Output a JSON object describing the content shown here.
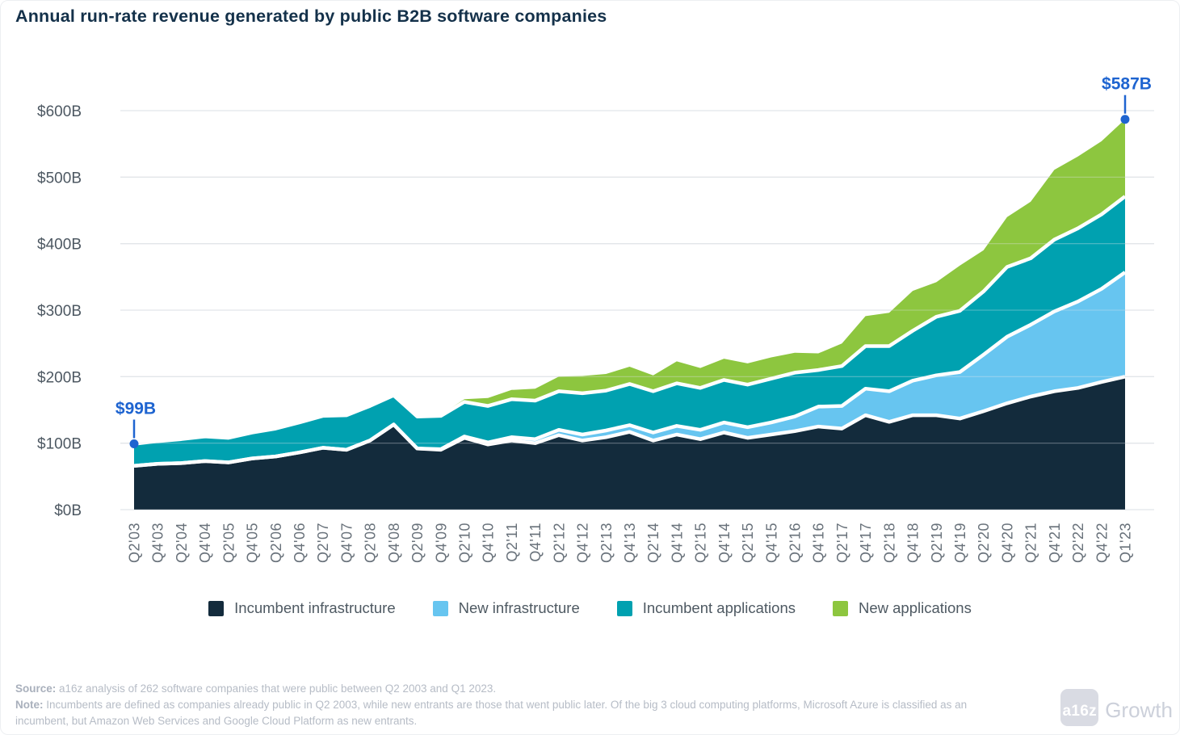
{
  "header": {
    "title": "Annual run-rate revenue generated by public B2B software companies"
  },
  "chart_data": {
    "type": "area",
    "stacked": true,
    "grid": true,
    "legend_position": "bottom",
    "ylim": [
      0,
      600
    ],
    "y_ticks": [
      {
        "value": 0,
        "label": "$0B"
      },
      {
        "value": 100,
        "label": "$100B"
      },
      {
        "value": 200,
        "label": "$200B"
      },
      {
        "value": 300,
        "label": "$300B"
      },
      {
        "value": 400,
        "label": "$400B"
      },
      {
        "value": 500,
        "label": "$500B"
      },
      {
        "value": 600,
        "label": "$600B"
      }
    ],
    "x_labels": [
      "Q2'03",
      "Q4'03",
      "Q2'04",
      "Q4'04",
      "Q2'05",
      "Q4'05",
      "Q2'06",
      "Q4'06",
      "Q2'07",
      "Q4'07",
      "Q2'08",
      "Q4'08",
      "Q2'09",
      "Q4'09",
      "Q2'10",
      "Q4'10",
      "Q2'11",
      "Q4'11",
      "Q2'12",
      "Q4'12",
      "Q2'13",
      "Q4'13",
      "Q2'14",
      "Q4'14",
      "Q2'15",
      "Q4'14",
      "Q2'15",
      "Q4'15",
      "Q2'16",
      "Q4'16",
      "Q2'17",
      "Q4'17",
      "Q2'18",
      "Q4'18",
      "Q2'19",
      "Q4'19",
      "Q2'20",
      "Q4'20",
      "Q2'21",
      "Q4'21",
      "Q2'22",
      "Q4'22",
      "Q1'23"
    ],
    "series": [
      {
        "name": "Incumbent infrastructure",
        "color": "#132b3c",
        "values": [
          66,
          69,
          70,
          73,
          71,
          77,
          80,
          86,
          93,
          90,
          104,
          128,
          92,
          90,
          108,
          98,
          104,
          100,
          112,
          104,
          109,
          117,
          104,
          113,
          106,
          116,
          108,
          113,
          118,
          125,
          122,
          142,
          132,
          142,
          142,
          137,
          148,
          160,
          170,
          178,
          183,
          192,
          200
        ]
      },
      {
        "name": "New infrastructure",
        "color": "#67c5f0",
        "values": [
          0,
          0,
          0,
          0,
          0,
          0,
          0,
          0,
          0,
          0,
          0,
          0,
          0,
          1,
          2,
          3,
          5,
          6,
          8,
          9,
          10,
          10,
          12,
          13,
          14,
          15,
          16,
          18,
          22,
          30,
          34,
          40,
          46,
          52,
          60,
          70,
          85,
          100,
          108,
          120,
          130,
          140,
          157
        ]
      },
      {
        "name": "Incumbent applications",
        "color": "#00a1b0",
        "values": [
          33,
          34,
          36,
          37,
          37,
          39,
          42,
          45,
          48,
          52,
          52,
          44,
          48,
          50,
          52,
          55,
          57,
          58,
          58,
          62,
          60,
          62,
          62,
          64,
          63,
          64,
          64,
          66,
          66,
          55,
          60,
          64,
          68,
          75,
          88,
          92,
          95,
          105,
          100,
          108,
          110,
          112,
          114
        ]
      },
      {
        "name": "New applications",
        "color": "#8dc63f",
        "values": [
          0,
          0,
          0,
          0,
          0,
          0,
          0,
          0,
          0,
          0,
          0,
          0,
          0,
          2,
          4,
          12,
          14,
          18,
          22,
          26,
          25,
          26,
          24,
          33,
          30,
          32,
          32,
          32,
          30,
          25,
          34,
          45,
          50,
          60,
          52,
          68,
          62,
          75,
          85,
          105,
          108,
          110,
          116
        ]
      }
    ],
    "annotations": [
      {
        "label": "$99B",
        "x_index": 0,
        "value": 99
      },
      {
        "label": "$587B",
        "x_index": 42,
        "value": 587
      }
    ],
    "annotation_color": "#1e64d0",
    "grid_color": "#e3e6e9",
    "separator_color": "#ffffff"
  },
  "legend": {
    "items": [
      {
        "label": "Incumbent infrastructure",
        "color": "#132b3c"
      },
      {
        "label": "New infrastructure",
        "color": "#67c5f0"
      },
      {
        "label": "Incumbent applications",
        "color": "#00a1b0"
      },
      {
        "label": "New applications",
        "color": "#8dc63f"
      }
    ]
  },
  "footer": {
    "source_label": "Source:",
    "source_text": " a16z analysis of 262 software companies that were public between Q2 2003 and Q1 2023.",
    "note_label": "Note:",
    "note_text": " Incumbents are defined as companies already public in Q2 2003, while new entrants are those that went public later. Of the big 3 cloud computing platforms, Microsoft Azure is classified as an incumbent, but Amazon Web Services and Google Cloud Platform as new entrants."
  },
  "logo": {
    "mark": "a16z",
    "wordmark": "Growth"
  }
}
